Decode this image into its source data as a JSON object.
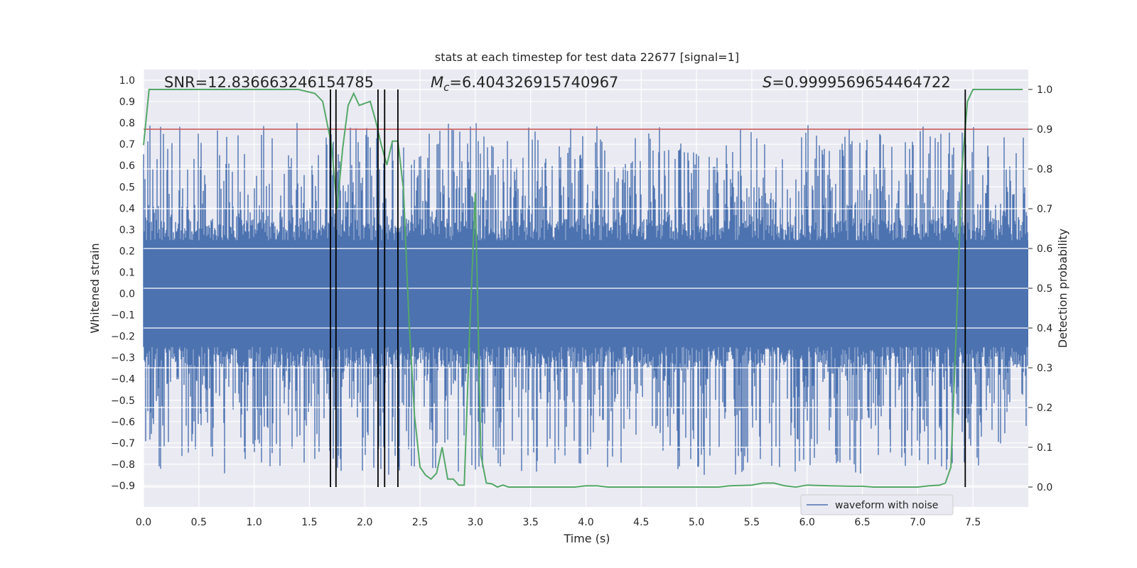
{
  "chart_data": {
    "type": "line",
    "title": "stats at each timestep for test data 22677 [signal=1]",
    "xlabel": "Time (s)",
    "ylabel_left": "Whitened strain",
    "ylabel_right": "Detection probability",
    "xlim": [
      0.0,
      8.0
    ],
    "ylim_left": [
      -1.0,
      1.05
    ],
    "ylim_right": [
      -0.05,
      1.05
    ],
    "x_ticks": [
      "0.0",
      "0.5",
      "1.0",
      "1.5",
      "2.0",
      "2.5",
      "3.0",
      "3.5",
      "4.0",
      "4.5",
      "5.0",
      "5.5",
      "6.0",
      "6.5",
      "7.0",
      "7.5"
    ],
    "y_left_ticks": [
      "1.0",
      "0.9",
      "0.8",
      "0.7",
      "0.6",
      "0.5",
      "0.4",
      "0.3",
      "0.2",
      "0.1",
      "0.0",
      "−0.1",
      "−0.2",
      "−0.3",
      "−0.4",
      "−0.5",
      "−0.6",
      "−0.7",
      "−0.8",
      "−0.9"
    ],
    "y_right_ticks": [
      "1.0",
      "0.9",
      "0.8",
      "0.7",
      "0.6",
      "0.5",
      "0.4",
      "0.3",
      "0.2",
      "0.1",
      "0.0"
    ],
    "grid": true,
    "legend_position": "lower-right",
    "annotations": {
      "snr": "SNR=12.836663246154785",
      "mc_symbol": "M",
      "mc_sub": "c",
      "mc_value": "=6.404326915740967",
      "s_symbol": "S",
      "s_value": "=0.9999569654464722"
    },
    "threshold_right": 0.9,
    "vertical_lines_x": [
      1.69,
      1.74,
      2.12,
      2.18,
      2.3,
      7.43
    ],
    "series": [
      {
        "name": "waveform with noise",
        "axis": "left",
        "kind": "noise",
        "amplitude_envelope": {
          "positive_max": 0.8,
          "negative_min": -0.85,
          "band": 0.25
        },
        "color": "#4c72b0"
      },
      {
        "axis": "right",
        "kind": "line",
        "color": "#55a868",
        "x": [
          0.0,
          0.05,
          0.1,
          0.2,
          0.4,
          0.6,
          0.8,
          1.0,
          1.2,
          1.4,
          1.55,
          1.62,
          1.7,
          1.75,
          1.8,
          1.85,
          1.9,
          1.95,
          2.0,
          2.05,
          2.1,
          2.15,
          2.2,
          2.25,
          2.3,
          2.35,
          2.4,
          2.45,
          2.5,
          2.55,
          2.6,
          2.65,
          2.7,
          2.75,
          2.8,
          2.85,
          2.9,
          2.95,
          3.0,
          3.05,
          3.1,
          3.15,
          3.2,
          3.25,
          3.3,
          3.4,
          3.5,
          3.6,
          3.7,
          3.8,
          3.9,
          4.0,
          4.1,
          4.2,
          4.4,
          4.6,
          4.8,
          5.0,
          5.2,
          5.3,
          5.4,
          5.5,
          5.6,
          5.7,
          5.8,
          5.9,
          6.0,
          6.2,
          6.4,
          6.5,
          6.6,
          6.8,
          7.0,
          7.1,
          7.2,
          7.25,
          7.3,
          7.35,
          7.4,
          7.45,
          7.5,
          7.55,
          7.6,
          7.8,
          7.95
        ],
        "y": [
          0.86,
          1.0,
          1.0,
          1.0,
          1.0,
          1.0,
          1.0,
          1.0,
          1.0,
          1.0,
          0.99,
          0.97,
          0.86,
          0.7,
          0.85,
          0.96,
          0.99,
          0.96,
          0.965,
          0.97,
          0.92,
          0.86,
          0.81,
          0.87,
          0.87,
          0.75,
          0.42,
          0.18,
          0.05,
          0.03,
          0.02,
          0.035,
          0.1,
          0.02,
          0.02,
          0.005,
          0.005,
          0.4,
          0.74,
          0.08,
          0.01,
          0.008,
          0.0,
          0.005,
          0.0,
          0.0,
          0.0,
          0.0,
          0.0,
          0.0,
          0.0,
          0.003,
          0.003,
          0.0,
          0.0,
          0.0,
          0.0,
          0.0,
          0.0,
          0.003,
          0.004,
          0.005,
          0.01,
          0.01,
          0.003,
          0.0,
          0.005,
          0.003,
          0.002,
          0.002,
          0.0,
          0.0,
          0.0,
          0.003,
          0.005,
          0.01,
          0.05,
          0.4,
          0.8,
          0.97,
          1.0,
          1.0,
          1.0,
          1.0,
          1.0
        ]
      }
    ]
  }
}
